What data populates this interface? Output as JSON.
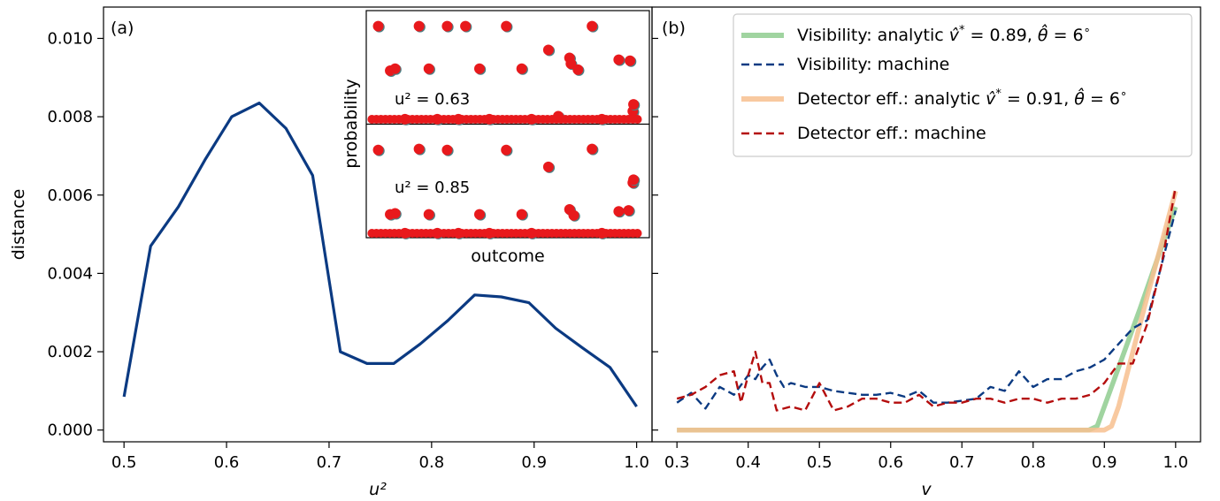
{
  "chart_data": [
    {
      "type": "line",
      "panel_label": "(a)",
      "xlabel": "u²",
      "ylabel": "distance",
      "xlim": [
        0.48,
        1.015
      ],
      "ylim": [
        -0.0003,
        0.0108
      ],
      "xticks": [
        0.5,
        0.6,
        0.7,
        0.8,
        0.9,
        1.0
      ],
      "xtick_labels": [
        "0.5",
        "0.6",
        "0.7",
        "0.8",
        "0.9",
        "1.0"
      ],
      "yticks": [
        0.0,
        0.002,
        0.004,
        0.006,
        0.008,
        0.01
      ],
      "ytick_labels": [
        "0.000",
        "0.002",
        "0.004",
        "0.006",
        "0.008",
        "0.010"
      ],
      "series": [
        {
          "color": "#0b3a82",
          "x": [
            0.5,
            0.526,
            0.553,
            0.579,
            0.605,
            0.632,
            0.658,
            0.684,
            0.711,
            0.737,
            0.763,
            0.789,
            0.816,
            0.842,
            0.868,
            0.895,
            0.921,
            0.947,
            0.974,
            1.0
          ],
          "y": [
            0.00085,
            0.0047,
            0.0057,
            0.0069,
            0.008,
            0.00835,
            0.0077,
            0.0065,
            0.002,
            0.0017,
            0.0017,
            0.0022,
            0.0028,
            0.00345,
            0.0034,
            0.00325,
            0.0026,
            0.0021,
            0.0016,
            0.0006
          ]
        }
      ],
      "inset": {
        "type": "scatter",
        "ylabel": "probability",
        "xlabel": "outcome",
        "panels": [
          {
            "annotation": "u² = 0.63",
            "points": [
              [
                0.6,
                0.95
              ],
              [
                1.45,
                0.5
              ],
              [
                1.8,
                0.52
              ],
              [
                2.5,
                0.01
              ],
              [
                3.5,
                0.95
              ],
              [
                4.2,
                0.52
              ],
              [
                4.8,
                0.01
              ],
              [
                5.5,
                0.95
              ],
              [
                6.3,
                0.01
              ],
              [
                6.8,
                0.95
              ],
              [
                7.8,
                0.52
              ],
              [
                8.5,
                0.01
              ],
              [
                9.7,
                0.95
              ],
              [
                10.8,
                0.52
              ],
              [
                11.5,
                0.01
              ],
              [
                12.7,
                0.71
              ],
              [
                13.4,
                0.04
              ],
              [
                14.2,
                0.63
              ],
              [
                14.3,
                0.57
              ],
              [
                14.8,
                0.51
              ],
              [
                15.8,
                0.95
              ],
              [
                16.5,
                0.01
              ],
              [
                17.7,
                0.61
              ],
              [
                18.5,
                0.6
              ],
              [
                18.7,
                0.09
              ],
              [
                18.75,
                0.16
              ]
            ]
          },
          {
            "annotation": "u² = 0.85",
            "points": [
              [
                0.6,
                0.85
              ],
              [
                1.45,
                0.2
              ],
              [
                1.8,
                0.21
              ],
              [
                2.5,
                0.01
              ],
              [
                3.5,
                0.86
              ],
              [
                4.8,
                0.01
              ],
              [
                4.2,
                0.2
              ],
              [
                5.5,
                0.85
              ],
              [
                6.3,
                0.01
              ],
              [
                7.8,
                0.2
              ],
              [
                8.5,
                0.01
              ],
              [
                9.7,
                0.85
              ],
              [
                10.8,
                0.2
              ],
              [
                11.5,
                0.01
              ],
              [
                12.7,
                0.68
              ],
              [
                14.2,
                0.25
              ],
              [
                14.5,
                0.19
              ],
              [
                15.8,
                0.86
              ],
              [
                16.5,
                0.01
              ],
              [
                17.7,
                0.23
              ],
              [
                18.4,
                0.24
              ],
              [
                18.7,
                0.52
              ],
              [
                18.75,
                0.55
              ]
            ]
          }
        ],
        "colors": {
          "machine": "#e8191c",
          "analytic": "#4d7f84"
        }
      }
    },
    {
      "type": "line",
      "panel_label": "(b)",
      "xlabel": "v",
      "xlim": [
        0.265,
        1.035
      ],
      "ylim": [
        -0.0003,
        0.0108
      ],
      "xticks": [
        0.3,
        0.4,
        0.5,
        0.6,
        0.7,
        0.8,
        0.9,
        1.0
      ],
      "xtick_labels": [
        "0.3",
        "0.4",
        "0.5",
        "0.6",
        "0.7",
        "0.8",
        "0.9",
        "1.0"
      ],
      "legend_position": "upper-right",
      "series": [
        {
          "name": "Visibility: analytic v̂* = 0.89, θ̂ = 6°",
          "legend_parts": [
            "Visibility: analytic ",
            "v̂",
            "*",
            " = 0.89, ",
            "θ̂",
            " = 6",
            "∘"
          ],
          "color": "#8fcc8f",
          "style": "solid-thick",
          "x": [
            0.3,
            0.878,
            0.89,
            0.9,
            0.95,
            1.0
          ],
          "y": [
            0.0,
            0.0,
            0.0001,
            0.0006,
            0.0031,
            0.0057
          ]
        },
        {
          "name": "Visibility: machine",
          "color": "#0b3a82",
          "style": "dashed",
          "x": [
            0.3,
            0.32,
            0.34,
            0.36,
            0.38,
            0.4,
            0.41,
            0.42,
            0.43,
            0.44,
            0.45,
            0.46,
            0.48,
            0.5,
            0.52,
            0.54,
            0.56,
            0.58,
            0.6,
            0.62,
            0.64,
            0.66,
            0.68,
            0.7,
            0.72,
            0.74,
            0.76,
            0.78,
            0.8,
            0.82,
            0.84,
            0.86,
            0.88,
            0.9,
            0.92,
            0.94,
            0.96,
            0.98,
            1.0
          ],
          "y": [
            0.0007,
            0.00095,
            0.00055,
            0.0011,
            0.0009,
            0.0014,
            0.0013,
            0.0016,
            0.0018,
            0.0014,
            0.0011,
            0.0012,
            0.0011,
            0.0011,
            0.001,
            0.00095,
            0.0009,
            0.0009,
            0.00095,
            0.00085,
            0.001,
            0.0007,
            0.0007,
            0.00075,
            0.0008,
            0.0011,
            0.001,
            0.0015,
            0.0011,
            0.0013,
            0.0013,
            0.0015,
            0.0016,
            0.0018,
            0.0022,
            0.0026,
            0.0028,
            0.0042,
            0.0056
          ]
        },
        {
          "name": "Detector eff.: analytic v̂* = 0.91, θ̂ = 6°",
          "legend_parts": [
            "Detector eff.: analytic ",
            "v̂",
            "*",
            " = 0.91, ",
            "θ̂",
            " = 6",
            "∘"
          ],
          "color": "#f7c08f",
          "style": "solid-thick",
          "x": [
            0.3,
            0.9,
            0.91,
            0.92,
            0.96,
            1.0
          ],
          "y": [
            0.0,
            0.0,
            0.0001,
            0.0006,
            0.0034,
            0.0061
          ]
        },
        {
          "name": "Detector eff.: machine",
          "color": "#b40d0d",
          "style": "dashed",
          "x": [
            0.3,
            0.32,
            0.34,
            0.36,
            0.38,
            0.39,
            0.4,
            0.41,
            0.42,
            0.43,
            0.44,
            0.46,
            0.48,
            0.5,
            0.52,
            0.54,
            0.56,
            0.58,
            0.6,
            0.62,
            0.64,
            0.66,
            0.68,
            0.7,
            0.72,
            0.74,
            0.76,
            0.78,
            0.8,
            0.82,
            0.84,
            0.86,
            0.88,
            0.9,
            0.92,
            0.94,
            0.96,
            0.98,
            1.0
          ],
          "y": [
            0.0008,
            0.0009,
            0.0011,
            0.0014,
            0.0015,
            0.0007,
            0.0014,
            0.002,
            0.0012,
            0.0012,
            0.0005,
            0.0006,
            0.0005,
            0.0012,
            0.0005,
            0.0006,
            0.0008,
            0.0008,
            0.0007,
            0.0007,
            0.0009,
            0.0006,
            0.0007,
            0.0007,
            0.0008,
            0.0008,
            0.0007,
            0.0008,
            0.0008,
            0.0007,
            0.0008,
            0.0008,
            0.0009,
            0.0012,
            0.0017,
            0.0017,
            0.0027,
            0.0042,
            0.0062
          ]
        }
      ]
    }
  ]
}
